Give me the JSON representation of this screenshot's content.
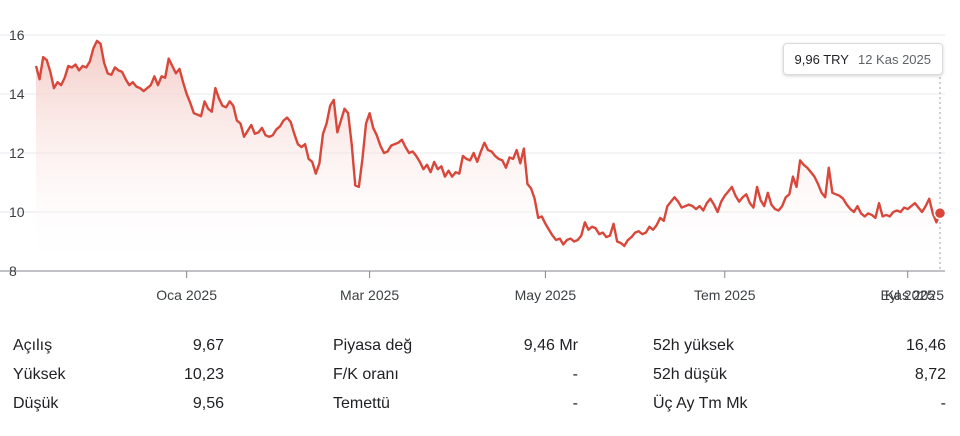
{
  "chart_data": {
    "type": "area",
    "series": [
      {
        "color": "#d8473a",
        "fill_top": "#f3c9c4",
        "values": [
          14.95,
          14.5,
          15.25,
          15.15,
          14.75,
          14.2,
          14.4,
          14.3,
          14.55,
          14.95,
          14.9,
          15.0,
          14.8,
          14.95,
          14.9,
          15.1,
          15.55,
          15.8,
          15.7,
          15.05,
          14.7,
          14.65,
          14.9,
          14.8,
          14.75,
          14.5,
          14.3,
          14.4,
          14.25,
          14.2,
          14.1,
          14.2,
          14.3,
          14.6,
          14.3,
          14.6,
          14.55,
          15.2,
          14.95,
          14.7,
          14.85,
          14.4,
          14.0,
          13.7,
          13.35,
          13.3,
          13.25,
          13.75,
          13.5,
          13.4,
          14.2,
          13.85,
          13.6,
          13.55,
          13.75,
          13.6,
          13.1,
          13.0,
          12.55,
          12.75,
          12.95,
          12.65,
          12.7,
          12.85,
          12.6,
          12.55,
          12.6,
          12.8,
          12.9,
          13.1,
          13.2,
          13.05,
          12.65,
          12.3,
          12.2,
          12.3,
          11.8,
          11.7,
          11.3,
          11.65,
          12.65,
          13.0,
          13.6,
          13.8,
          12.7,
          13.1,
          13.5,
          13.35,
          12.3,
          10.9,
          10.85,
          11.8,
          13.0,
          13.35,
          12.85,
          12.6,
          12.25,
          12.0,
          12.05,
          12.25,
          12.3,
          12.35,
          12.45,
          12.2,
          12.0,
          12.05,
          11.9,
          11.7,
          11.45,
          11.6,
          11.35,
          11.7,
          11.45,
          11.55,
          11.2,
          11.4,
          11.2,
          11.35,
          11.3,
          11.9,
          11.8,
          11.75,
          12.0,
          11.7,
          12.05,
          12.35,
          12.1,
          12.05,
          11.9,
          11.8,
          11.75,
          11.5,
          11.85,
          11.8,
          12.1,
          11.65,
          12.15,
          10.95,
          10.8,
          10.45,
          9.8,
          9.85,
          9.6,
          9.4,
          9.2,
          9.05,
          9.1,
          8.9,
          9.05,
          9.1,
          9.0,
          9.05,
          9.2,
          9.65,
          9.4,
          9.5,
          9.45,
          9.25,
          9.3,
          9.15,
          9.2,
          9.6,
          9.0,
          8.95,
          8.85,
          9.05,
          9.15,
          9.3,
          9.35,
          9.25,
          9.3,
          9.5,
          9.4,
          9.55,
          9.8,
          9.7,
          10.2,
          10.35,
          10.5,
          10.35,
          10.15,
          10.2,
          10.25,
          10.2,
          10.1,
          10.2,
          10.05,
          10.3,
          10.45,
          10.25,
          10.0,
          10.35,
          10.55,
          10.7,
          10.85,
          10.55,
          10.35,
          10.5,
          10.6,
          10.3,
          10.15,
          10.85,
          10.4,
          10.2,
          10.65,
          10.25,
          10.1,
          10.05,
          10.2,
          10.5,
          10.6,
          11.2,
          10.85,
          11.75,
          11.6,
          11.5,
          11.35,
          11.2,
          10.95,
          10.65,
          10.5,
          11.5,
          10.65,
          10.6,
          10.55,
          10.45,
          10.25,
          10.1,
          10.0,
          10.2,
          9.95,
          9.85,
          9.95,
          9.9,
          9.8,
          10.3,
          9.85,
          9.9,
          9.85,
          10.0,
          10.05,
          10.0,
          10.15,
          10.1,
          10.2,
          10.3,
          10.15,
          10.0,
          10.2,
          10.45,
          9.95,
          9.65,
          9.96
        ],
        "last_marker": true
      }
    ],
    "y_ticks": [
      "8",
      "10",
      "12",
      "14",
      "16"
    ],
    "y_tick_values": [
      8,
      10,
      12,
      14,
      16
    ],
    "ylim": [
      8,
      16
    ],
    "x_ticks": [
      "Oca 2025",
      "Mar 2025",
      "May 2025",
      "Tem 2025",
      "Eyl 2025",
      "Kas 2025"
    ],
    "x_tick_index": [
      42,
      93,
      142,
      192,
      243,
      292
    ],
    "grid": true
  },
  "tooltip": {
    "price": "9,96 TRY",
    "date": "12 Kas 2025"
  },
  "stats": [
    [
      {
        "label": "Açılış",
        "value": "9,67"
      },
      {
        "label": "Piyasa değ",
        "value": "9,46 Mr"
      },
      {
        "label": "52h yüksek",
        "value": "16,46"
      }
    ],
    [
      {
        "label": "Yüksek",
        "value": "10,23"
      },
      {
        "label": "F/K oranı",
        "value": "-"
      },
      {
        "label": "52h düşük",
        "value": "8,72"
      }
    ],
    [
      {
        "label": "Düşük",
        "value": "9,56"
      },
      {
        "label": "Temettü",
        "value": "-"
      },
      {
        "label": "Üç Ay Tm Mk",
        "value": "-"
      }
    ]
  ]
}
